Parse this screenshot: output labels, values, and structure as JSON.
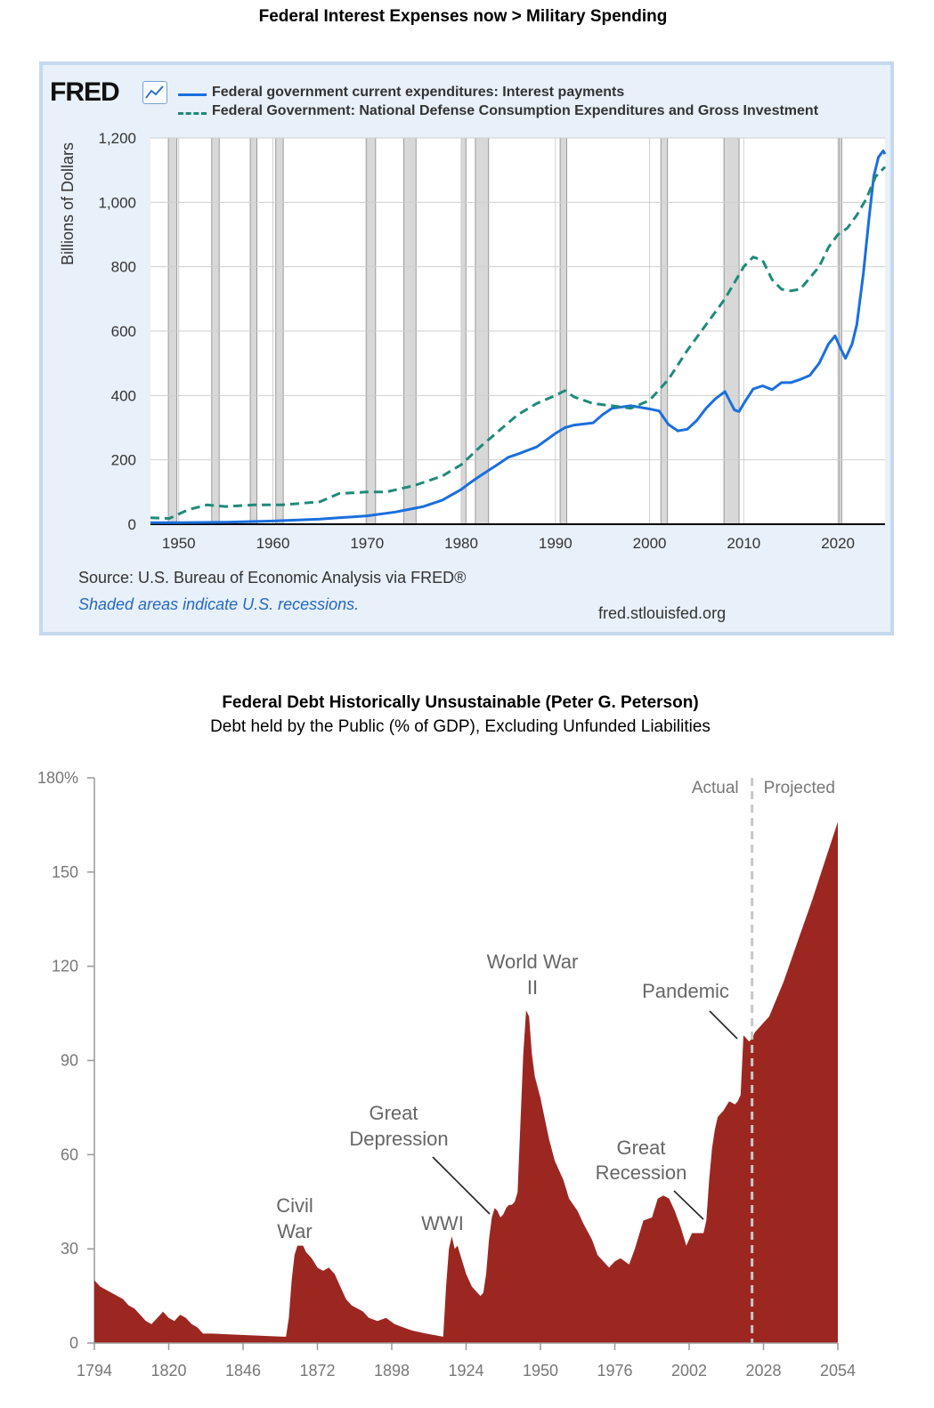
{
  "chart_data": [
    {
      "type": "line",
      "title": "Federal Interest Expenses now > Military Spending",
      "brand": "FRED",
      "ylabel": "Billions of Dollars",
      "xlim": [
        1947,
        2025
      ],
      "ylim": [
        0,
        1200
      ],
      "yticks": [
        0,
        200,
        400,
        600,
        800,
        1000,
        1200
      ],
      "ytick_labels": [
        "0",
        "200",
        "400",
        "600",
        "800",
        "1,000",
        "1,200"
      ],
      "xticks": [
        1950,
        1960,
        1970,
        1980,
        1990,
        2000,
        2010,
        2020
      ],
      "xtick_labels": [
        "1950",
        "1960",
        "1970",
        "1980",
        "1990",
        "2000",
        "2010",
        "2020"
      ],
      "legend_position": "top",
      "series": [
        {
          "name": "Federal government current expenditures: Interest payments",
          "style": "solid",
          "color": "#1a6fdd",
          "x": [
            1947,
            1950,
            1955,
            1960,
            1965,
            1970,
            1973,
            1976,
            1978,
            1980,
            1981,
            1982,
            1984,
            1985,
            1986,
            1988,
            1990,
            1991,
            1992,
            1994,
            1995,
            1996,
            1998,
            2000,
            2001,
            2002,
            2003,
            2004,
            2005,
            2006,
            2007,
            2008,
            2009,
            2009.5,
            2010,
            2011,
            2012,
            2013,
            2014,
            2015,
            2016,
            2017,
            2018,
            2019,
            2019.7,
            2020.3,
            2020.8,
            2021.5,
            2022,
            2022.7,
            2023.3,
            2023.8,
            2024.3,
            2024.8,
            2025
          ],
          "values": [
            5,
            5,
            6,
            10,
            16,
            26,
            38,
            55,
            75,
            108,
            130,
            150,
            188,
            208,
            218,
            240,
            282,
            300,
            308,
            315,
            340,
            360,
            368,
            358,
            352,
            310,
            290,
            295,
            322,
            360,
            390,
            412,
            355,
            350,
            375,
            420,
            430,
            418,
            440,
            440,
            450,
            462,
            500,
            560,
            585,
            545,
            515,
            560,
            620,
            780,
            950,
            1080,
            1140,
            1160,
            1150
          ]
        },
        {
          "name": "Federal Government: National Defense Consumption Expenditures and Gross Investment",
          "style": "dashed",
          "color": "#1f8a7a",
          "x": [
            1947,
            1949,
            1951,
            1953,
            1955,
            1958,
            1961,
            1965,
            1967,
            1970,
            1972,
            1975,
            1978,
            1980,
            1982,
            1984,
            1986,
            1988,
            1990,
            1991,
            1992,
            1994,
            1996,
            1998,
            2000,
            2002,
            2004,
            2006,
            2008,
            2010,
            2011,
            2012,
            2013,
            2014,
            2015,
            2016,
            2018,
            2019,
            2020,
            2021,
            2022,
            2023,
            2024,
            2025
          ],
          "values": [
            20,
            18,
            45,
            60,
            55,
            60,
            60,
            70,
            95,
            100,
            100,
            120,
            150,
            185,
            240,
            290,
            340,
            375,
            400,
            415,
            395,
            375,
            368,
            360,
            385,
            450,
            540,
            620,
            700,
            800,
            830,
            820,
            760,
            730,
            725,
            730,
            800,
            860,
            900,
            920,
            960,
            1010,
            1080,
            1110
          ]
        }
      ],
      "recessions": [
        [
          1948.9,
          1949.8
        ],
        [
          1953.5,
          1954.3
        ],
        [
          1957.6,
          1958.3
        ],
        [
          1960.3,
          1961.1
        ],
        [
          1969.9,
          1970.9
        ],
        [
          1973.9,
          1975.2
        ],
        [
          1980.0,
          1980.5
        ],
        [
          1981.5,
          1982.9
        ],
        [
          1990.5,
          1991.2
        ],
        [
          2001.2,
          2001.9
        ],
        [
          2007.9,
          2009.5
        ],
        [
          2020.1,
          2020.4
        ]
      ],
      "source": "Source: U.S. Bureau of Economic Analysis via FRED®",
      "note": "Shaded areas indicate U.S. recessions.",
      "url": "fred.stlouisfed.org"
    },
    {
      "type": "area",
      "title": "Federal Debt Historically Unsustainable (Peter G. Peterson)",
      "subtitle": "Debt held by the Public (% of GDP), Excluding Unfunded Liabilities",
      "xlim": [
        1794,
        2054
      ],
      "ylim": [
        0,
        180
      ],
      "yticks": [
        0,
        30,
        60,
        90,
        120,
        150,
        180
      ],
      "ytick_labels": [
        "0",
        "30",
        "60",
        "90",
        "120",
        "150",
        "180%"
      ],
      "xticks": [
        1794,
        1820,
        1846,
        1872,
        1898,
        1924,
        1950,
        1976,
        2002,
        2028,
        2054
      ],
      "xtick_labels": [
        "1794",
        "1820",
        "1846",
        "1872",
        "1898",
        "1924",
        "1950",
        "1976",
        "2002",
        "2028",
        "2054"
      ],
      "color": "#9c2721",
      "divider_year": 2024,
      "divider_labels": [
        "Actual",
        "Projected"
      ],
      "x": [
        1794,
        1796,
        1800,
        1804,
        1806,
        1808,
        1810,
        1812,
        1814,
        1816,
        1818,
        1820,
        1822,
        1824,
        1826,
        1828,
        1830,
        1832,
        1835,
        1860,
        1861,
        1862,
        1863,
        1864,
        1865,
        1867,
        1868,
        1870,
        1872,
        1874,
        1876,
        1878,
        1880,
        1882,
        1884,
        1886,
        1888,
        1890,
        1893,
        1896,
        1899,
        1902,
        1905,
        1910,
        1916,
        1917,
        1918,
        1919,
        1920,
        1921,
        1922,
        1924,
        1926,
        1928,
        1929,
        1930,
        1931,
        1932,
        1933,
        1934,
        1935,
        1936,
        1937,
        1938,
        1939,
        1940,
        1941,
        1942,
        1943,
        1944,
        1945,
        1946,
        1947,
        1948,
        1950,
        1953,
        1955,
        1958,
        1960,
        1963,
        1965,
        1968,
        1970,
        1974,
        1976,
        1978,
        1981,
        1983,
        1986,
        1989,
        1991,
        1993,
        1995,
        1997,
        1999,
        2001,
        2003,
        2005,
        2007,
        2008,
        2009,
        2010,
        2011,
        2012,
        2014,
        2016,
        2018,
        2019,
        2020,
        2021,
        2022,
        2023,
        2024,
        2025,
        2030,
        2035,
        2040,
        2045,
        2050,
        2054
      ],
      "values": [
        20,
        18,
        16,
        14,
        12,
        11,
        9,
        7,
        6,
        8,
        10,
        8,
        7,
        9,
        8,
        6,
        5,
        3,
        3,
        2,
        2,
        8,
        20,
        28,
        31,
        31,
        29,
        27,
        24,
        23,
        24,
        22,
        18,
        14,
        12,
        11,
        10,
        8,
        7,
        8,
        6,
        5,
        4,
        3,
        2,
        18,
        30,
        34,
        30,
        31,
        28,
        22,
        18,
        16,
        15,
        16,
        22,
        33,
        40,
        43,
        42,
        40,
        41,
        43,
        44,
        44,
        45,
        48,
        70,
        92,
        106,
        104,
        92,
        85,
        78,
        65,
        58,
        52,
        46,
        42,
        38,
        33,
        28,
        24,
        26,
        27,
        25,
        30,
        39,
        40,
        46,
        47,
        46,
        42,
        37,
        31,
        35,
        35,
        35,
        39,
        52,
        62,
        68,
        72,
        74,
        77,
        76,
        77,
        79,
        98,
        97,
        96,
        97,
        99,
        104,
        115,
        128,
        141,
        155,
        166
      ],
      "annotations": [
        {
          "label": "Civil War"
        },
        {
          "label": "WWI"
        },
        {
          "label": "Great Depression"
        },
        {
          "label": "World War II"
        },
        {
          "label": "Great Recession"
        },
        {
          "label": "Pandemic"
        }
      ]
    }
  ]
}
